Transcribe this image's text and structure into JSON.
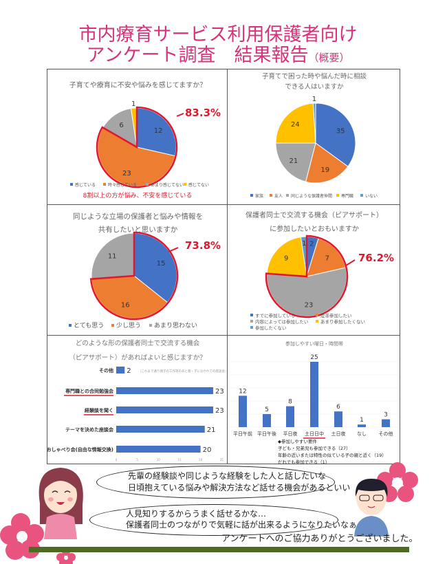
{
  "header": {
    "title_line1": "市内療育サービス利用保護者向け",
    "title_line2": "アンケート調査　結果報告",
    "title_suffix": "（概要）"
  },
  "colors": {
    "blue": "#4472C4",
    "orange": "#ED7D31",
    "gray": "#A5A5A5",
    "yellow": "#FFC000",
    "lightblue": "#5B9BD5",
    "highlight": "#E0182D",
    "accent": "#d6337a"
  },
  "chart_data": [
    {
      "type": "pie",
      "title": [
        "子育てや療育に不安や悩みを感じてますか？"
      ],
      "categories": [
        "感じている",
        "時々感じている",
        "あまり感じてない",
        "感じてない"
      ],
      "values": [
        12,
        23,
        6,
        1
      ],
      "colors": [
        "#4472C4",
        "#ED7D31",
        "#A5A5A5",
        "#FFC000"
      ],
      "highlight_count": 2,
      "highlight_label": "83.3%",
      "note": "8割以上の方が悩み、不安を感じている",
      "legend": "bottom"
    },
    {
      "type": "pie",
      "title": [
        "子育てで困った時や悩んだ時に相談",
        "できる人はいますか"
      ],
      "categories": [
        "家族",
        "友人",
        "同じような保護者仲間",
        "専門職",
        "いない"
      ],
      "values": [
        35,
        19,
        21,
        24,
        1
      ],
      "colors": [
        "#4472C4",
        "#ED7D31",
        "#A5A5A5",
        "#FFC000",
        "#5B9BD5"
      ],
      "highlight_count": 0,
      "legend": "bottom"
    },
    {
      "type": "pie",
      "title": [
        "同じような立場の保護者と悩みや情報を",
        "共有したいと思いますか"
      ],
      "categories": [
        "とても思う",
        "少し思う",
        "あまり思わない"
      ],
      "values": [
        15,
        16,
        11
      ],
      "colors": [
        "#4472C4",
        "#ED7D31",
        "#A5A5A5"
      ],
      "highlight_count": 2,
      "highlight_label": "73.8%",
      "legend": "bottom"
    },
    {
      "type": "pie",
      "title": [
        "保護者同士で交流する機会（ピアサポート）",
        "に参加したいとおもいますか"
      ],
      "categories": [
        "すでに参加している",
        "是非参加したい",
        "内容によっては参加したい",
        "あまり参加したくない",
        "参加したくない"
      ],
      "values": [
        2,
        7,
        23,
        9,
        1
      ],
      "colors": [
        "#4472C4",
        "#ED7D31",
        "#A5A5A5",
        "#FFC000",
        "#5B9BD5"
      ],
      "highlight_count": 3,
      "highlight_label": "76.2%",
      "legend": "bottom"
    },
    {
      "type": "bar",
      "orientation": "horizontal",
      "title": [
        "どのような形の保護者同士で交流する機会",
        "（ピアサポート）があればよいと感じますか？"
      ],
      "categories": [
        "その他",
        "専門職との合同勉強会",
        "経験談を聞く",
        "テーマを決めた座談会",
        "おしゃべり会(自由な情報交換)"
      ],
      "values": [
        2,
        23,
        23,
        21,
        20
      ],
      "underlined": [
        "専門職との合同勉強会",
        "経験談を聞く"
      ],
      "annotation": "（これまで通り親子の工作等のあと親・子に分かれての座談会）",
      "xticks": [
        "0",
        "5",
        "10",
        "15",
        "20",
        "25"
      ],
      "xlim": [
        0,
        25
      ],
      "color": "#4472C4"
    },
    {
      "type": "bar",
      "orientation": "vertical",
      "title": [
        "参加しやすい曜日・時間帯"
      ],
      "categories": [
        "平日午前",
        "平日午後",
        "平日夜",
        "土日日中",
        "土日夜",
        "なし",
        "その他"
      ],
      "values": [
        12,
        5,
        8,
        25,
        6,
        1,
        3
      ],
      "underlined": [
        "土日日中"
      ],
      "ylim": [
        0,
        30
      ],
      "color": "#4472C4",
      "notes": [
        "◆参加しやすい要件",
        "子ども・兄弟児も参加できる（27）",
        "年齢の近いまたは特性の似ている子の親と近く（19）",
        "だれでも参加できる（1）"
      ]
    }
  ],
  "bubbles": [
    [
      "先輩の経験談や同じような経験をした人と話したいな",
      "日頃抱えている悩みや解決方法など話せる機会があるといい"
    ],
    [
      "人見知りするからうまく話せるかな…",
      "保護者同士のつながりで気軽に話が出来るようになりたいなぁ"
    ]
  ],
  "footer": {
    "thanks": "アンケートへのご協力ありがとうございました。"
  }
}
